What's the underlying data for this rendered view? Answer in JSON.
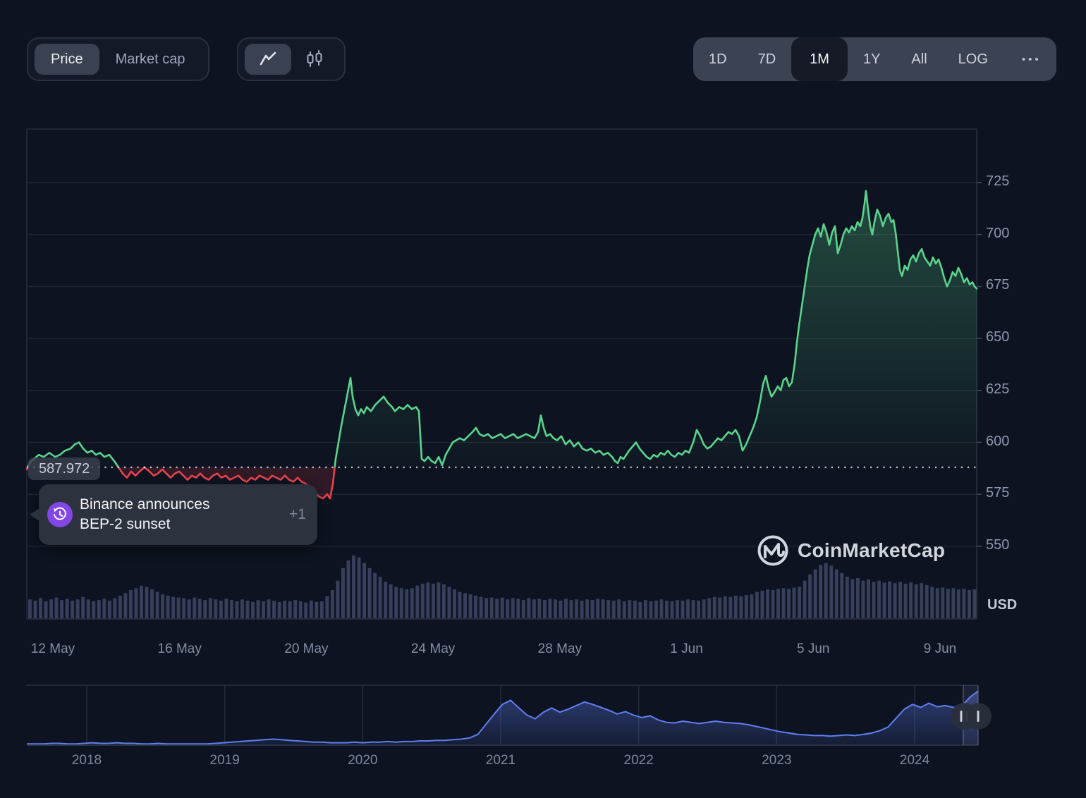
{
  "toolbar": {
    "metric_toggle": {
      "options": [
        "Price",
        "Market cap"
      ],
      "selected": "Price"
    },
    "chart_type_toggle": {
      "options": [
        "line-chart",
        "candlestick-chart"
      ],
      "selected": "line-chart"
    },
    "ranges": {
      "options": [
        "1D",
        "7D",
        "1M",
        "1Y",
        "All"
      ],
      "selected": "1M",
      "log_label": "LOG",
      "more_label": "•••"
    }
  },
  "tooltip": {
    "icon": "history-icon",
    "line1": "Binance announces",
    "line2": "BEP-2 sunset",
    "badge": "+1"
  },
  "baseline_label": "587.972",
  "watermark": {
    "icon": "coinmarketcap-logo",
    "text": "CoinMarketCap"
  },
  "colors": {
    "up": "#5ad48c",
    "down": "#e8434d",
    "navigator": "#5f7ef2",
    "annotation": "#8247e5",
    "volume": "#3d4564",
    "background": "#0d1320"
  },
  "chart_data": {
    "type": "line",
    "title": "Price chart, 1M range, USD",
    "unit": "USD",
    "baseline": {
      "value": 587.972
    },
    "y_axis": {
      "ticks": [
        725,
        700,
        675,
        650,
        625,
        600,
        575,
        550
      ],
      "label": "USD"
    },
    "x_axis": {
      "ticks": [
        "12 May",
        "16 May",
        "20 May",
        "24 May",
        "28 May",
        "1 Jun",
        "5 Jun",
        "9 Jun"
      ]
    },
    "price_series": [
      [
        38,
        587
      ],
      [
        42,
        590
      ],
      [
        48,
        592
      ],
      [
        55,
        594
      ],
      [
        62,
        593
      ],
      [
        70,
        595
      ],
      [
        78,
        593
      ],
      [
        85,
        594
      ],
      [
        92,
        596
      ],
      [
        100,
        597
      ],
      [
        106,
        599
      ],
      [
        112,
        600
      ],
      [
        118,
        597
      ],
      [
        124,
        595
      ],
      [
        130,
        596
      ],
      [
        136,
        594
      ],
      [
        142,
        595
      ],
      [
        148,
        593
      ],
      [
        155,
        594
      ],
      [
        162,
        591
      ],
      [
        168,
        588
      ],
      [
        174,
        585
      ],
      [
        180,
        583
      ],
      [
        186,
        586
      ],
      [
        192,
        584
      ],
      [
        198,
        586
      ],
      [
        205,
        588
      ],
      [
        212,
        586
      ],
      [
        218,
        584
      ],
      [
        224,
        585
      ],
      [
        230,
        587
      ],
      [
        236,
        585
      ],
      [
        242,
        583
      ],
      [
        248,
        585
      ],
      [
        254,
        586
      ],
      [
        260,
        584
      ],
      [
        266,
        582
      ],
      [
        272,
        584
      ],
      [
        278,
        583
      ],
      [
        284,
        585
      ],
      [
        290,
        583
      ],
      [
        296,
        582
      ],
      [
        302,
        584
      ],
      [
        308,
        585
      ],
      [
        314,
        583
      ],
      [
        320,
        584
      ],
      [
        326,
        582
      ],
      [
        332,
        583
      ],
      [
        338,
        584
      ],
      [
        344,
        582
      ],
      [
        350,
        581
      ],
      [
        356,
        583
      ],
      [
        362,
        582
      ],
      [
        368,
        584
      ],
      [
        374,
        583
      ],
      [
        380,
        582
      ],
      [
        386,
        584
      ],
      [
        392,
        583
      ],
      [
        398,
        582
      ],
      [
        404,
        584
      ],
      [
        410,
        582
      ],
      [
        416,
        581
      ],
      [
        422,
        583
      ],
      [
        428,
        581
      ],
      [
        434,
        580
      ],
      [
        440,
        578
      ],
      [
        446,
        576
      ],
      [
        452,
        574
      ],
      [
        458,
        573
      ],
      [
        464,
        575
      ],
      [
        468,
        573
      ],
      [
        472,
        580
      ],
      [
        476,
        592
      ],
      [
        480,
        600
      ],
      [
        484,
        608
      ],
      [
        488,
        615
      ],
      [
        492,
        622
      ],
      [
        497,
        631
      ],
      [
        500,
        622
      ],
      [
        504,
        616
      ],
      [
        508,
        613
      ],
      [
        512,
        616
      ],
      [
        516,
        614
      ],
      [
        520,
        617
      ],
      [
        526,
        615
      ],
      [
        532,
        618
      ],
      [
        538,
        620
      ],
      [
        544,
        622
      ],
      [
        550,
        619
      ],
      [
        556,
        617
      ],
      [
        560,
        615
      ],
      [
        566,
        617
      ],
      [
        572,
        616
      ],
      [
        578,
        618
      ],
      [
        584,
        616
      ],
      [
        590,
        617
      ],
      [
        594,
        615
      ],
      [
        598,
        592
      ],
      [
        602,
        591
      ],
      [
        607,
        593
      ],
      [
        612,
        591
      ],
      [
        617,
        590
      ],
      [
        622,
        593
      ],
      [
        627,
        589
      ],
      [
        632,
        594
      ],
      [
        637,
        597
      ],
      [
        642,
        600
      ],
      [
        647,
        601
      ],
      [
        652,
        602
      ],
      [
        658,
        601
      ],
      [
        664,
        603
      ],
      [
        670,
        605
      ],
      [
        675,
        607
      ],
      [
        680,
        604
      ],
      [
        686,
        603
      ],
      [
        692,
        604
      ],
      [
        698,
        602
      ],
      [
        704,
        603
      ],
      [
        710,
        604
      ],
      [
        716,
        602
      ],
      [
        722,
        603
      ],
      [
        728,
        604
      ],
      [
        734,
        602
      ],
      [
        740,
        603
      ],
      [
        746,
        604
      ],
      [
        752,
        603
      ],
      [
        758,
        602
      ],
      [
        763,
        605
      ],
      [
        767,
        613
      ],
      [
        771,
        607
      ],
      [
        775,
        603
      ],
      [
        780,
        604
      ],
      [
        785,
        602
      ],
      [
        790,
        601
      ],
      [
        796,
        603
      ],
      [
        802,
        599
      ],
      [
        808,
        601
      ],
      [
        814,
        598
      ],
      [
        820,
        600
      ],
      [
        826,
        597
      ],
      [
        832,
        596
      ],
      [
        838,
        597
      ],
      [
        844,
        595
      ],
      [
        850,
        596
      ],
      [
        856,
        594
      ],
      [
        862,
        595
      ],
      [
        868,
        593
      ],
      [
        872,
        591
      ],
      [
        876,
        590
      ],
      [
        880,
        593
      ],
      [
        884,
        592
      ],
      [
        888,
        594
      ],
      [
        892,
        596
      ],
      [
        897,
        598
      ],
      [
        902,
        600
      ],
      [
        907,
        597
      ],
      [
        912,
        595
      ],
      [
        917,
        593
      ],
      [
        922,
        592
      ],
      [
        927,
        594
      ],
      [
        932,
        593
      ],
      [
        937,
        595
      ],
      [
        942,
        594
      ],
      [
        947,
        596
      ],
      [
        952,
        594
      ],
      [
        957,
        593
      ],
      [
        962,
        595
      ],
      [
        967,
        594
      ],
      [
        972,
        596
      ],
      [
        977,
        595
      ],
      [
        983,
        600
      ],
      [
        988,
        606
      ],
      [
        993,
        603
      ],
      [
        998,
        599
      ],
      [
        1003,
        597
      ],
      [
        1008,
        598
      ],
      [
        1013,
        600
      ],
      [
        1018,
        602
      ],
      [
        1023,
        601
      ],
      [
        1028,
        603
      ],
      [
        1033,
        605
      ],
      [
        1038,
        604
      ],
      [
        1043,
        606
      ],
      [
        1048,
        603
      ],
      [
        1053,
        596
      ],
      [
        1058,
        599
      ],
      [
        1063,
        603
      ],
      [
        1068,
        607
      ],
      [
        1073,
        612
      ],
      [
        1078,
        620
      ],
      [
        1082,
        628
      ],
      [
        1086,
        632
      ],
      [
        1090,
        626
      ],
      [
        1094,
        622
      ],
      [
        1098,
        624
      ],
      [
        1103,
        627
      ],
      [
        1107,
        625
      ],
      [
        1111,
        630
      ],
      [
        1115,
        631
      ],
      [
        1119,
        627
      ],
      [
        1123,
        629
      ],
      [
        1127,
        638
      ],
      [
        1130,
        648
      ],
      [
        1133,
        656
      ],
      [
        1136,
        663
      ],
      [
        1139,
        670
      ],
      [
        1142,
        677
      ],
      [
        1145,
        684
      ],
      [
        1148,
        690
      ],
      [
        1152,
        695
      ],
      [
        1156,
        700
      ],
      [
        1160,
        703
      ],
      [
        1164,
        699
      ],
      [
        1168,
        705
      ],
      [
        1172,
        701
      ],
      [
        1176,
        695
      ],
      [
        1180,
        701
      ],
      [
        1184,
        704
      ],
      [
        1188,
        691
      ],
      [
        1192,
        695
      ],
      [
        1196,
        700
      ],
      [
        1200,
        703
      ],
      [
        1204,
        701
      ],
      [
        1208,
        704
      ],
      [
        1212,
        702
      ],
      [
        1216,
        706
      ],
      [
        1220,
        704
      ],
      [
        1223,
        708
      ],
      [
        1226,
        715
      ],
      [
        1228,
        721
      ],
      [
        1231,
        712
      ],
      [
        1234,
        704
      ],
      [
        1237,
        700
      ],
      [
        1240,
        706
      ],
      [
        1244,
        712
      ],
      [
        1248,
        709
      ],
      [
        1252,
        704
      ],
      [
        1256,
        708
      ],
      [
        1260,
        710
      ],
      [
        1264,
        706
      ],
      [
        1267,
        707
      ],
      [
        1270,
        701
      ],
      [
        1273,
        692
      ],
      [
        1276,
        683
      ],
      [
        1279,
        680
      ],
      [
        1283,
        685
      ],
      [
        1287,
        683
      ],
      [
        1291,
        688
      ],
      [
        1295,
        690
      ],
      [
        1299,
        687
      ],
      [
        1303,
        691
      ],
      [
        1307,
        693
      ],
      [
        1311,
        689
      ],
      [
        1315,
        687
      ],
      [
        1319,
        685
      ],
      [
        1323,
        689
      ],
      [
        1327,
        686
      ],
      [
        1331,
        688
      ],
      [
        1335,
        684
      ],
      [
        1339,
        679
      ],
      [
        1343,
        675
      ],
      [
        1347,
        678
      ],
      [
        1351,
        682
      ],
      [
        1355,
        680
      ],
      [
        1359,
        684
      ],
      [
        1363,
        681
      ],
      [
        1367,
        677
      ],
      [
        1371,
        679
      ],
      [
        1375,
        676
      ],
      [
        1379,
        677
      ],
      [
        1382,
        675
      ],
      [
        1385,
        674
      ]
    ],
    "volume_series": [
      0.3,
      0.28,
      0.32,
      0.27,
      0.3,
      0.33,
      0.29,
      0.31,
      0.28,
      0.3,
      0.34,
      0.3,
      0.27,
      0.29,
      0.31,
      0.28,
      0.32,
      0.36,
      0.4,
      0.45,
      0.48,
      0.52,
      0.5,
      0.46,
      0.42,
      0.38,
      0.36,
      0.34,
      0.33,
      0.32,
      0.3,
      0.33,
      0.31,
      0.29,
      0.32,
      0.3,
      0.28,
      0.31,
      0.29,
      0.27,
      0.3,
      0.28,
      0.26,
      0.29,
      0.27,
      0.3,
      0.28,
      0.26,
      0.28,
      0.27,
      0.29,
      0.27,
      0.25,
      0.28,
      0.26,
      0.27,
      0.35,
      0.45,
      0.6,
      0.8,
      0.92,
      1.0,
      0.97,
      0.88,
      0.8,
      0.72,
      0.66,
      0.58,
      0.54,
      0.5,
      0.48,
      0.46,
      0.48,
      0.52,
      0.55,
      0.57,
      0.55,
      0.57,
      0.54,
      0.5,
      0.46,
      0.42,
      0.4,
      0.38,
      0.36,
      0.34,
      0.32,
      0.33,
      0.31,
      0.33,
      0.3,
      0.32,
      0.31,
      0.29,
      0.32,
      0.3,
      0.31,
      0.29,
      0.31,
      0.3,
      0.28,
      0.31,
      0.29,
      0.3,
      0.28,
      0.3,
      0.29,
      0.31,
      0.3,
      0.29,
      0.28,
      0.3,
      0.27,
      0.29,
      0.28,
      0.26,
      0.29,
      0.27,
      0.28,
      0.3,
      0.28,
      0.27,
      0.29,
      0.28,
      0.3,
      0.29,
      0.28,
      0.3,
      0.32,
      0.34,
      0.33,
      0.35,
      0.34,
      0.36,
      0.35,
      0.37,
      0.38,
      0.42,
      0.44,
      0.46,
      0.45,
      0.47,
      0.48,
      0.47,
      0.49,
      0.5,
      0.6,
      0.7,
      0.78,
      0.85,
      0.88,
      0.84,
      0.78,
      0.72,
      0.66,
      0.62,
      0.64,
      0.6,
      0.62,
      0.58,
      0.6,
      0.57,
      0.59,
      0.56,
      0.58,
      0.55,
      0.57,
      0.54,
      0.56,
      0.53,
      0.5,
      0.48,
      0.49,
      0.47,
      0.48,
      0.46,
      0.47,
      0.45,
      0.46
    ],
    "navigator": {
      "years": [
        "2018",
        "2019",
        "2020",
        "2021",
        "2022",
        "2023",
        "2024"
      ],
      "series": [
        0.02,
        0.02,
        0.02,
        0.03,
        0.03,
        0.02,
        0.02,
        0.03,
        0.04,
        0.03,
        0.03,
        0.04,
        0.03,
        0.03,
        0.02,
        0.02,
        0.03,
        0.02,
        0.02,
        0.02,
        0.02,
        0.02,
        0.02,
        0.03,
        0.04,
        0.05,
        0.06,
        0.07,
        0.08,
        0.09,
        0.1,
        0.09,
        0.08,
        0.07,
        0.06,
        0.05,
        0.05,
        0.04,
        0.04,
        0.04,
        0.05,
        0.04,
        0.05,
        0.05,
        0.06,
        0.05,
        0.06,
        0.06,
        0.07,
        0.07,
        0.08,
        0.08,
        0.09,
        0.1,
        0.12,
        0.18,
        0.35,
        0.52,
        0.68,
        0.75,
        0.62,
        0.5,
        0.44,
        0.55,
        0.62,
        0.55,
        0.6,
        0.66,
        0.72,
        0.68,
        0.63,
        0.58,
        0.52,
        0.56,
        0.5,
        0.46,
        0.49,
        0.42,
        0.38,
        0.37,
        0.4,
        0.38,
        0.36,
        0.38,
        0.4,
        0.38,
        0.37,
        0.36,
        0.34,
        0.31,
        0.28,
        0.25,
        0.22,
        0.2,
        0.18,
        0.17,
        0.16,
        0.16,
        0.15,
        0.16,
        0.17,
        0.16,
        0.18,
        0.2,
        0.24,
        0.3,
        0.45,
        0.6,
        0.68,
        0.63,
        0.7,
        0.64,
        0.66,
        0.63,
        0.65,
        0.8,
        0.9
      ]
    }
  }
}
